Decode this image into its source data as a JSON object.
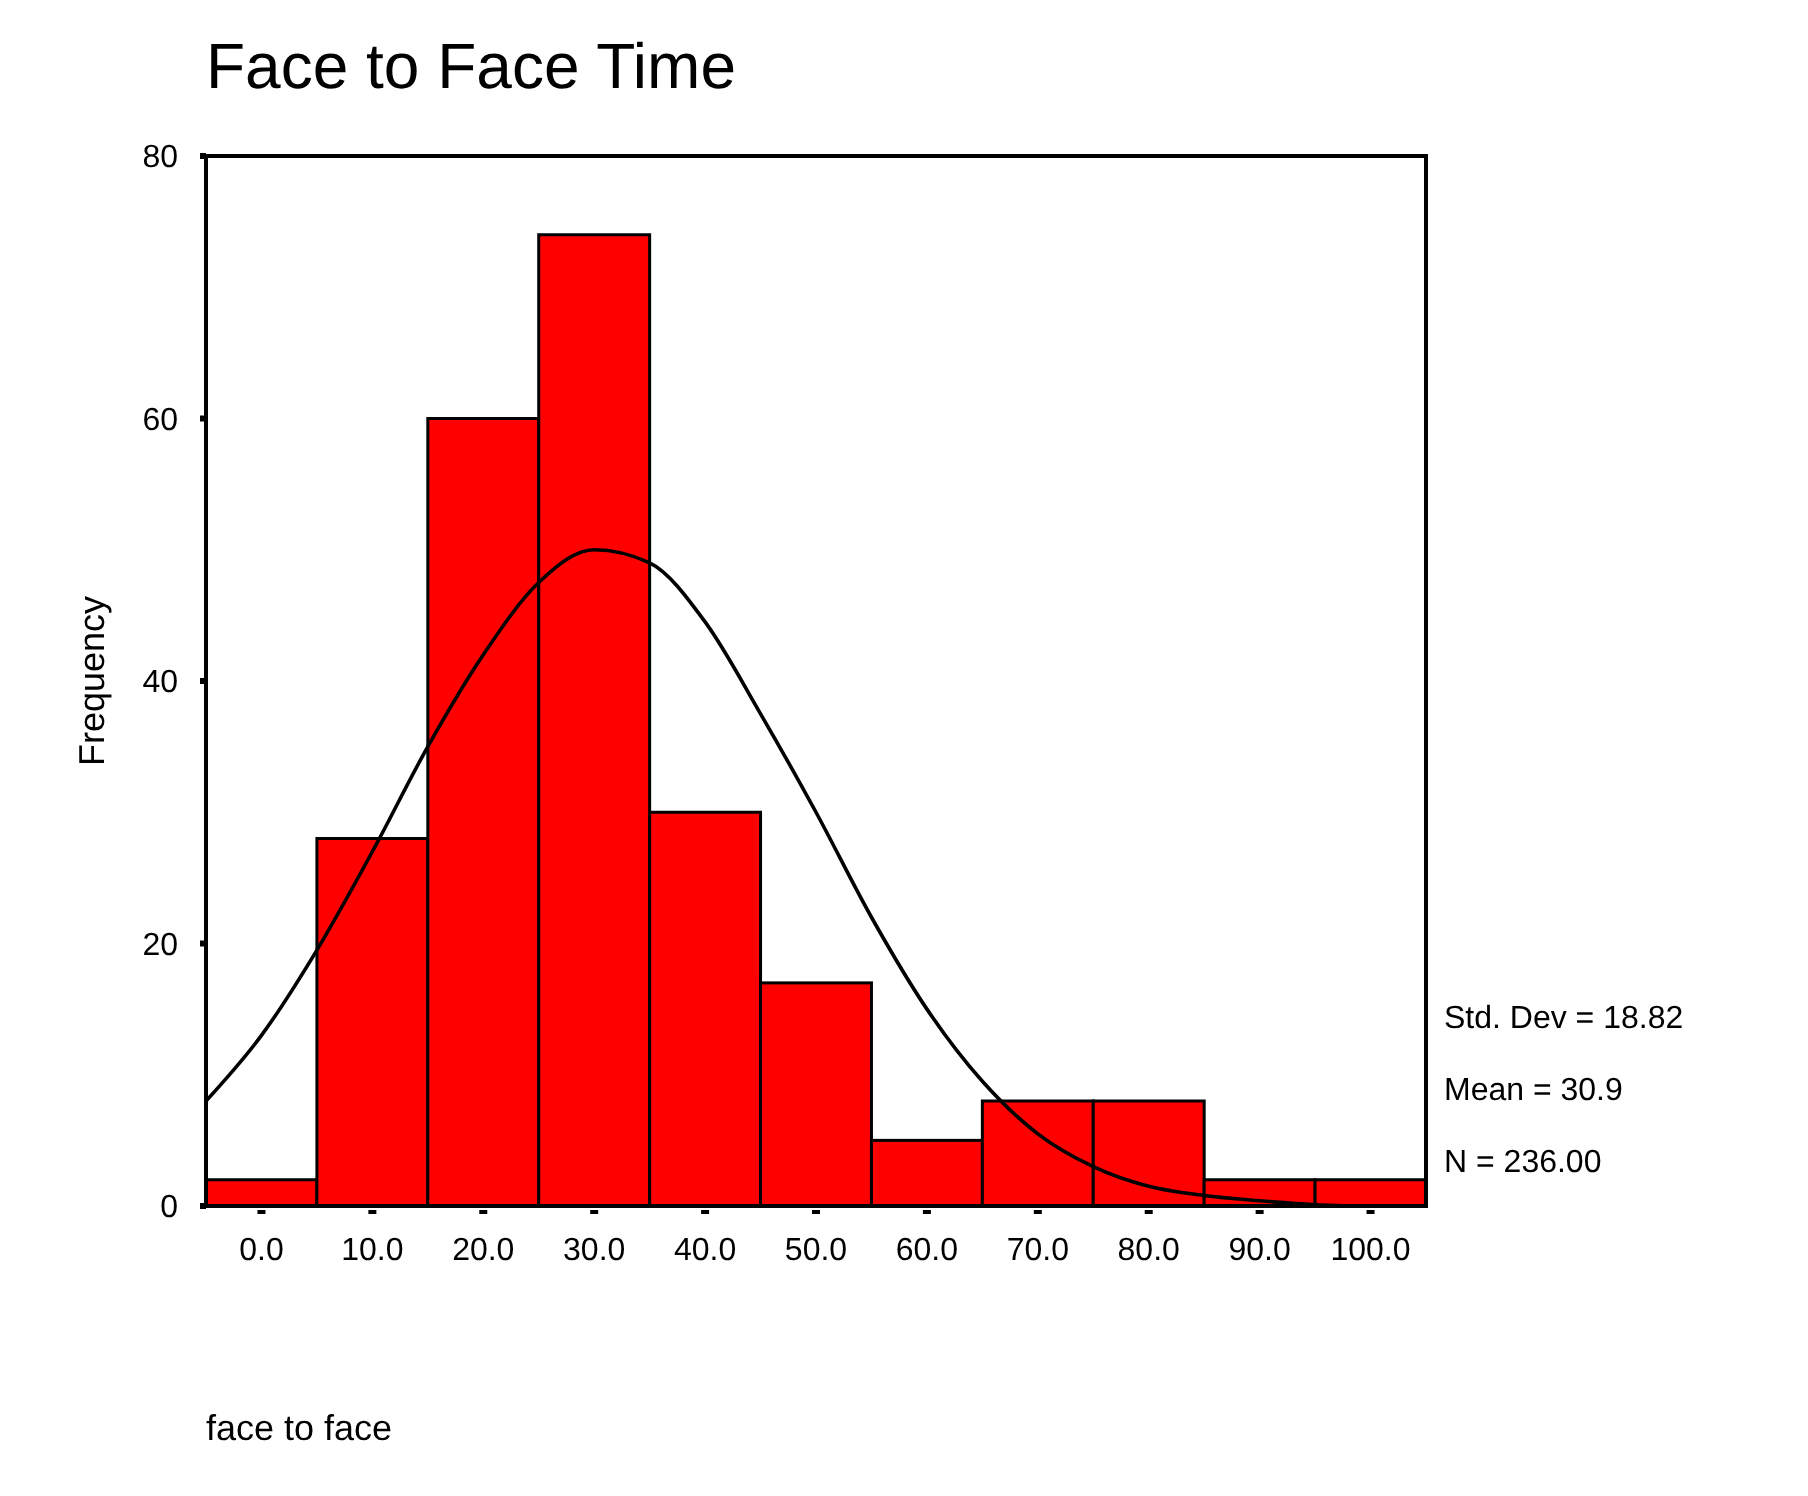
{
  "chart_data": {
    "type": "histogram",
    "title": "Face to Face Time",
    "xlabel": "face to face",
    "ylabel": "Frequency",
    "bins": [
      -5,
      5,
      15,
      25,
      35,
      45,
      55,
      65,
      75,
      85,
      95,
      105
    ],
    "values": [
      2,
      28,
      60,
      74,
      30,
      17,
      5,
      8,
      8,
      2,
      2
    ],
    "color": "#ff0000",
    "series": [
      {
        "type": "line",
        "color": "#000000",
        "x": [
          -5,
          0,
          5,
          10,
          15,
          20,
          25,
          30,
          35,
          40,
          45,
          50,
          55,
          60,
          65,
          70,
          75,
          80,
          85,
          90,
          95,
          100,
          105
        ],
        "values": [
          8,
          13,
          19.5,
          27,
          35,
          42,
          47.5,
          50,
          49,
          44.5,
          37.5,
          30,
          22,
          15,
          9.5,
          5.5,
          3,
          1.5,
          0.8,
          0.4,
          0.1,
          0,
          0
        ]
      }
    ],
    "xlim": [
      -5,
      105
    ],
    "xticks": [
      {
        "value": 0,
        "label": "0.0"
      },
      {
        "value": 10,
        "label": "10.0"
      },
      {
        "value": 20,
        "label": "20.0"
      },
      {
        "value": 30,
        "label": "30.0"
      },
      {
        "value": 40,
        "label": "40.0"
      },
      {
        "value": 50,
        "label": "50.0"
      },
      {
        "value": 60,
        "label": "60.0"
      },
      {
        "value": 70,
        "label": "70.0"
      },
      {
        "value": 80,
        "label": "80.0"
      },
      {
        "value": 90,
        "label": "90.0"
      },
      {
        "value": 100,
        "label": "100.0"
      }
    ],
    "ylim": [
      0,
      80
    ],
    "yticks": [
      0,
      20,
      40,
      60,
      80
    ],
    "annotations": [
      "Std. Dev = 18.82",
      "Mean = 30.9",
      "N = 236.00"
    ]
  }
}
